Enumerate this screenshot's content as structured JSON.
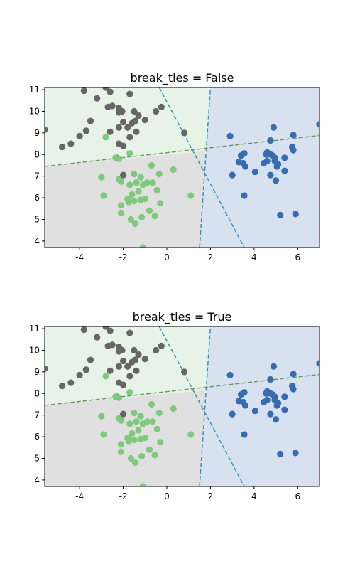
{
  "chart_data": [
    {
      "type": "scatter",
      "title": "break_ties = False",
      "xlabel": "",
      "ylabel": "",
      "xlim": [
        -5.6,
        7.0
      ],
      "ylim": [
        3.7,
        11.1
      ],
      "xticks": [
        -4,
        -2,
        0,
        2,
        4,
        6
      ],
      "yticks": [
        4,
        5,
        6,
        7,
        8,
        9,
        10,
        11
      ],
      "grid": false,
      "colors": {
        "class_gray": "#666666",
        "class_green": "#7fc97f",
        "class_blue": "#386cb0",
        "region_gray": "#e0e0e0",
        "region_green": "#e6f3e6",
        "region_blue": "#d7e1f0",
        "boundary_a": "#3a8fb7",
        "boundary_b": "#6a9a5a"
      },
      "regions": [
        {
          "class": "green",
          "polygon": [
            [
              -5.6,
              7.45
            ],
            [
              1.78,
              8.16
            ],
            [
              1.82,
              8.43
            ],
            [
              2.0,
              11.1
            ],
            [
              -5.6,
              11.1
            ]
          ]
        },
        {
          "class": "gray",
          "polygon": [
            [
              -5.6,
              3.7
            ],
            [
              1.5,
              3.7
            ],
            [
              1.78,
              8.16
            ],
            [
              -5.6,
              7.45
            ]
          ]
        },
        {
          "class": "blue",
          "polygon": [
            [
              1.5,
              3.7
            ],
            [
              7.0,
              3.7
            ],
            [
              7.0,
              11.1
            ],
            [
              2.0,
              11.1
            ],
            [
              1.82,
              8.43
            ]
          ]
        }
      ],
      "boundaries": [
        {
          "x": [
            -0.35,
            3.55
          ],
          "y": [
            11.1,
            3.7
          ],
          "color": "boundary_a",
          "style": "dashed"
        },
        {
          "x": [
            1.5,
            2.0
          ],
          "y": [
            3.7,
            11.1
          ],
          "color": "boundary_a",
          "style": "dashed"
        },
        {
          "x": [
            -5.6,
            7.0
          ],
          "y": [
            7.45,
            8.88
          ],
          "color": "boundary_b",
          "style": "dashed"
        }
      ],
      "series": [
        {
          "class": "gray",
          "points": [
            [
              -3.8,
              10.95
            ],
            [
              -3.2,
              10.6
            ],
            [
              -2.8,
              11.1
            ],
            [
              -2.6,
              10.9
            ],
            [
              -2.7,
              10.2
            ],
            [
              -2.5,
              10.25
            ],
            [
              -2.2,
              10.15
            ],
            [
              -2.2,
              9.95
            ],
            [
              -2.05,
              10.0
            ],
            [
              -1.7,
              10.8
            ],
            [
              -1.5,
              10.0
            ],
            [
              -1.3,
              9.8
            ],
            [
              -1.0,
              9.6
            ],
            [
              -0.5,
              10.0
            ],
            [
              -0.25,
              10.2
            ],
            [
              -3.5,
              9.55
            ],
            [
              -2.0,
              9.5
            ],
            [
              -1.6,
              9.45
            ],
            [
              -1.45,
              9.55
            ],
            [
              -2.2,
              9.25
            ],
            [
              -1.8,
              9.25
            ],
            [
              -1.4,
              9.05
            ],
            [
              -2.6,
              9.05
            ],
            [
              -3.7,
              9.1
            ],
            [
              -5.6,
              9.15
            ],
            [
              -4.0,
              8.85
            ],
            [
              -4.4,
              8.5
            ],
            [
              -4.8,
              8.35
            ],
            [
              -1.7,
              8.8
            ],
            [
              -2.2,
              8.5
            ],
            [
              -2.0,
              8.4
            ],
            [
              -2.3,
              7.85
            ],
            [
              -2.0,
              7.05
            ],
            [
              0.8,
              9.0
            ]
          ]
        },
        {
          "class": "green",
          "points": [
            [
              -2.8,
              8.8
            ],
            [
              -1.7,
              8.05
            ],
            [
              -2.35,
              7.85
            ],
            [
              -2.2,
              7.8
            ],
            [
              -3.0,
              6.95
            ],
            [
              -2.2,
              6.85
            ],
            [
              -1.5,
              7.1
            ],
            [
              -0.7,
              7.5
            ],
            [
              -0.35,
              7.1
            ],
            [
              0.3,
              7.3
            ],
            [
              -1.2,
              6.95
            ],
            [
              -2.1,
              6.75
            ],
            [
              -1.7,
              6.6
            ],
            [
              -1.4,
              6.7
            ],
            [
              -1.1,
              6.6
            ],
            [
              -0.9,
              6.7
            ],
            [
              -0.65,
              6.7
            ],
            [
              -0.45,
              6.35
            ],
            [
              -1.3,
              6.3
            ],
            [
              -1.6,
              6.15
            ],
            [
              -1.8,
              5.95
            ],
            [
              -2.9,
              6.1
            ],
            [
              -1.2,
              5.9
            ],
            [
              -1.5,
              5.85
            ],
            [
              -1.75,
              5.8
            ],
            [
              -1.0,
              5.95
            ],
            [
              -0.3,
              5.75
            ],
            [
              -2.1,
              5.65
            ],
            [
              -0.8,
              5.4
            ],
            [
              -2.1,
              5.3
            ],
            [
              -1.65,
              5.0
            ],
            [
              -1.15,
              5.1
            ],
            [
              -0.55,
              5.15
            ],
            [
              -1.45,
              4.8
            ],
            [
              -1.1,
              3.7
            ],
            [
              1.1,
              6.1
            ]
          ]
        },
        {
          "class": "blue",
          "points": [
            [
              4.9,
              9.25
            ],
            [
              2.9,
              8.85
            ],
            [
              5.8,
              8.9
            ],
            [
              7.0,
              9.4
            ],
            [
              4.75,
              8.65
            ],
            [
              5.75,
              8.35
            ],
            [
              5.8,
              8.2
            ],
            [
              3.55,
              8.05
            ],
            [
              3.4,
              7.95
            ],
            [
              4.55,
              8.0
            ],
            [
              4.6,
              8.1
            ],
            [
              4.75,
              8.0
            ],
            [
              4.85,
              7.95
            ],
            [
              4.95,
              7.85
            ],
            [
              5.4,
              7.85
            ],
            [
              3.3,
              7.65
            ],
            [
              3.5,
              7.6
            ],
            [
              3.6,
              7.45
            ],
            [
              4.45,
              7.6
            ],
            [
              4.6,
              7.7
            ],
            [
              4.95,
              7.7
            ],
            [
              5.1,
              7.55
            ],
            [
              5.05,
              7.45
            ],
            [
              4.05,
              7.2
            ],
            [
              4.75,
              7.05
            ],
            [
              5.4,
              7.25
            ],
            [
              3.0,
              7.05
            ],
            [
              5.0,
              6.8
            ],
            [
              3.55,
              6.1
            ],
            [
              5.9,
              5.25
            ],
            [
              5.2,
              5.2
            ]
          ]
        }
      ]
    },
    {
      "type": "scatter",
      "title": "break_ties = True",
      "xlabel": "",
      "ylabel": "",
      "xlim": [
        -5.6,
        7.0
      ],
      "ylim": [
        3.7,
        11.1
      ],
      "xticks": [
        -4,
        -2,
        0,
        2,
        4,
        6
      ],
      "yticks": [
        4,
        5,
        6,
        7,
        8,
        9,
        10,
        11
      ],
      "grid": false,
      "colors": {
        "class_gray": "#666666",
        "class_green": "#7fc97f",
        "class_blue": "#386cb0",
        "region_gray": "#e0e0e0",
        "region_green": "#e6f3e6",
        "region_blue": "#d7e1f0",
        "boundary_a": "#3a8fb7",
        "boundary_b": "#6a9a5a"
      },
      "regions": [
        {
          "class": "green",
          "polygon": [
            [
              -5.6,
              7.45
            ],
            [
              1.78,
              8.16
            ],
            [
              1.82,
              8.43
            ],
            [
              2.0,
              11.1
            ],
            [
              -5.6,
              11.1
            ]
          ]
        },
        {
          "class": "gray",
          "polygon": [
            [
              -5.6,
              3.7
            ],
            [
              1.5,
              3.7
            ],
            [
              1.78,
              8.16
            ],
            [
              -5.6,
              7.45
            ]
          ]
        },
        {
          "class": "blue",
          "polygon": [
            [
              1.5,
              3.7
            ],
            [
              7.0,
              3.7
            ],
            [
              7.0,
              11.1
            ],
            [
              2.0,
              11.1
            ],
            [
              1.82,
              8.43
            ]
          ]
        }
      ],
      "boundaries": [
        {
          "x": [
            -0.35,
            3.55
          ],
          "y": [
            11.1,
            3.7
          ],
          "color": "boundary_a",
          "style": "dashed"
        },
        {
          "x": [
            1.5,
            2.0
          ],
          "y": [
            3.7,
            11.1
          ],
          "color": "boundary_a",
          "style": "dashed"
        },
        {
          "x": [
            -5.6,
            7.0
          ],
          "y": [
            7.45,
            8.88
          ],
          "color": "boundary_b",
          "style": "dashed"
        }
      ],
      "series": [
        {
          "class": "gray",
          "points": [
            [
              -3.8,
              10.95
            ],
            [
              -3.2,
              10.6
            ],
            [
              -2.8,
              11.1
            ],
            [
              -2.6,
              10.9
            ],
            [
              -2.7,
              10.2
            ],
            [
              -2.5,
              10.25
            ],
            [
              -2.2,
              10.15
            ],
            [
              -2.2,
              9.95
            ],
            [
              -2.05,
              10.0
            ],
            [
              -1.7,
              10.8
            ],
            [
              -1.5,
              10.0
            ],
            [
              -1.3,
              9.8
            ],
            [
              -1.0,
              9.6
            ],
            [
              -0.5,
              10.0
            ],
            [
              -0.25,
              10.2
            ],
            [
              -3.5,
              9.55
            ],
            [
              -2.0,
              9.5
            ],
            [
              -1.6,
              9.45
            ],
            [
              -1.45,
              9.55
            ],
            [
              -2.2,
              9.25
            ],
            [
              -1.8,
              9.25
            ],
            [
              -1.4,
              9.05
            ],
            [
              -2.6,
              9.05
            ],
            [
              -3.7,
              9.1
            ],
            [
              -5.6,
              9.15
            ],
            [
              -4.0,
              8.85
            ],
            [
              -4.4,
              8.5
            ],
            [
              -4.8,
              8.35
            ],
            [
              -1.7,
              8.8
            ],
            [
              -2.2,
              8.5
            ],
            [
              -2.0,
              8.4
            ],
            [
              -2.3,
              7.85
            ],
            [
              -2.0,
              7.05
            ],
            [
              0.8,
              9.0
            ]
          ]
        },
        {
          "class": "green",
          "points": [
            [
              -2.8,
              8.8
            ],
            [
              -1.7,
              8.05
            ],
            [
              -2.35,
              7.85
            ],
            [
              -2.2,
              7.8
            ],
            [
              -3.0,
              6.95
            ],
            [
              -2.2,
              6.85
            ],
            [
              -1.5,
              7.1
            ],
            [
              -0.7,
              7.5
            ],
            [
              -0.35,
              7.1
            ],
            [
              0.3,
              7.3
            ],
            [
              -1.2,
              6.95
            ],
            [
              -2.1,
              6.75
            ],
            [
              -1.7,
              6.6
            ],
            [
              -1.4,
              6.7
            ],
            [
              -1.1,
              6.6
            ],
            [
              -0.9,
              6.7
            ],
            [
              -0.65,
              6.7
            ],
            [
              -0.45,
              6.35
            ],
            [
              -1.3,
              6.3
            ],
            [
              -1.6,
              6.15
            ],
            [
              -1.8,
              5.95
            ],
            [
              -2.9,
              6.1
            ],
            [
              -1.2,
              5.9
            ],
            [
              -1.5,
              5.85
            ],
            [
              -1.75,
              5.8
            ],
            [
              -1.0,
              5.95
            ],
            [
              -0.3,
              5.75
            ],
            [
              -2.1,
              5.65
            ],
            [
              -0.8,
              5.4
            ],
            [
              -2.1,
              5.3
            ],
            [
              -1.65,
              5.0
            ],
            [
              -1.15,
              5.1
            ],
            [
              -0.55,
              5.15
            ],
            [
              -1.45,
              4.8
            ],
            [
              -1.1,
              3.7
            ],
            [
              1.1,
              6.1
            ]
          ]
        },
        {
          "class": "blue",
          "points": [
            [
              4.9,
              9.25
            ],
            [
              2.9,
              8.85
            ],
            [
              5.8,
              8.9
            ],
            [
              7.0,
              9.4
            ],
            [
              4.75,
              8.65
            ],
            [
              5.75,
              8.35
            ],
            [
              5.8,
              8.2
            ],
            [
              3.55,
              8.05
            ],
            [
              3.4,
              7.95
            ],
            [
              4.55,
              8.0
            ],
            [
              4.6,
              8.1
            ],
            [
              4.75,
              8.0
            ],
            [
              4.85,
              7.95
            ],
            [
              4.95,
              7.85
            ],
            [
              5.4,
              7.85
            ],
            [
              3.3,
              7.65
            ],
            [
              3.5,
              7.6
            ],
            [
              3.6,
              7.45
            ],
            [
              4.45,
              7.6
            ],
            [
              4.6,
              7.7
            ],
            [
              4.95,
              7.7
            ],
            [
              5.1,
              7.55
            ],
            [
              5.05,
              7.45
            ],
            [
              4.05,
              7.2
            ],
            [
              4.75,
              7.05
            ],
            [
              5.4,
              7.25
            ],
            [
              3.0,
              7.05
            ],
            [
              5.0,
              6.8
            ],
            [
              3.55,
              6.1
            ],
            [
              5.9,
              5.25
            ],
            [
              5.2,
              5.2
            ]
          ]
        }
      ]
    }
  ]
}
